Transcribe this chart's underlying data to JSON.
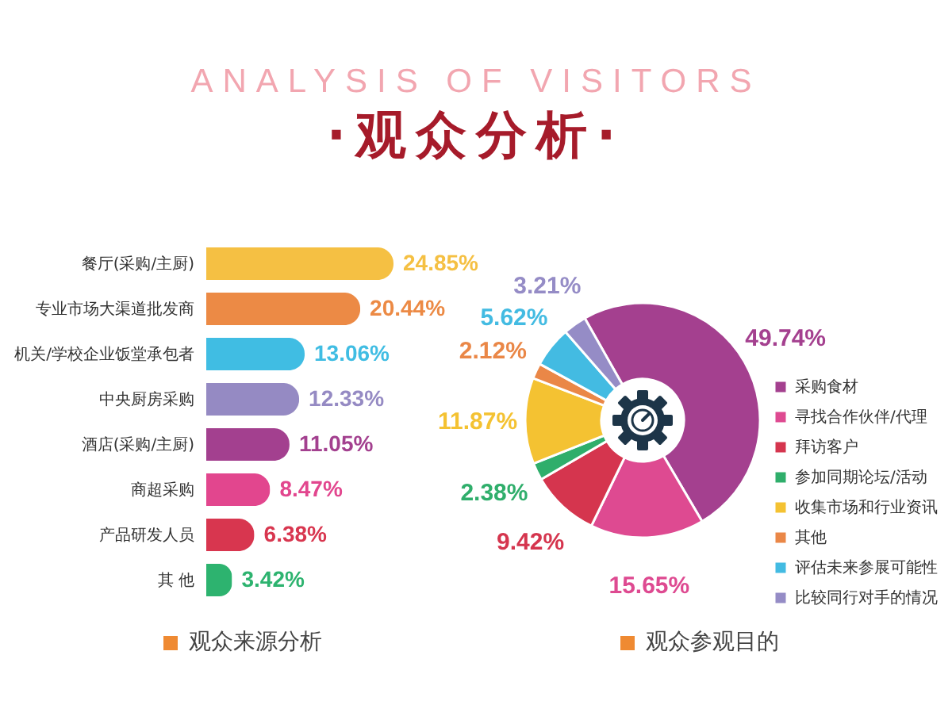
{
  "chart_data": [
    {
      "type": "other",
      "title": "ANALYSIS OF VISITORS",
      "subtitle": "·观众分析·"
    },
    {
      "type": "bar",
      "orientation": "horizontal",
      "title": "观众来源分析",
      "categories": [
        "餐厅(采购/主厨)",
        "专业市场大渠道批发商",
        "机关/学校企业饭堂承包者",
        "中央厨房采购",
        "酒店(采购/主厨)",
        "商超采购",
        "产品研发人员",
        "其 他"
      ],
      "values": [
        24.85,
        20.44,
        13.06,
        12.33,
        11.05,
        8.47,
        6.38,
        3.42
      ],
      "value_labels": [
        "24.85%",
        "20.44%",
        "13.06%",
        "12.33%",
        "11.05%",
        "8.47%",
        "6.38%",
        "3.42%"
      ],
      "colors": [
        "#f5c043",
        "#ec8a45",
        "#40bde3",
        "#958ac3",
        "#a3408f",
        "#e2468e",
        "#d8364f",
        "#2db36f"
      ]
    },
    {
      "type": "donut",
      "title": "观众参观目的",
      "categories": [
        "采购食材",
        "寻找合作伙伴/代理",
        "拜访客户",
        "参加同期论坛/活动",
        "收集市场和行业资讯",
        "其他",
        "评估未来参展可能性",
        "比较同行对手的情况"
      ],
      "values": [
        49.74,
        15.65,
        9.42,
        2.38,
        11.87,
        2.12,
        5.62,
        3.21
      ],
      "value_labels": [
        "49.74%",
        "15.65%",
        "9.42%",
        "2.38%",
        "11.87%",
        "2.12%",
        "5.62%",
        "3.21%"
      ],
      "colors": [
        "#a4408f",
        "#de4a91",
        "#d5354e",
        "#2fae6b",
        "#f4c232",
        "#ea8747",
        "#43bbe2",
        "#958cc6"
      ],
      "legend": "right"
    }
  ]
}
